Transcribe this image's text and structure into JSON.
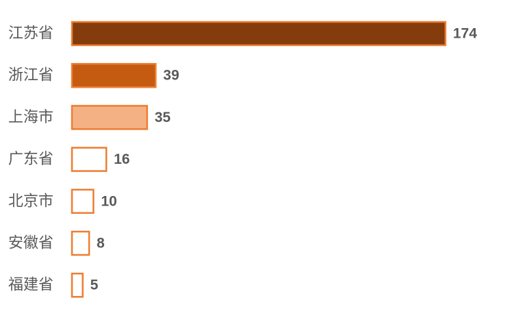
{
  "chart_data": {
    "type": "bar",
    "orientation": "horizontal",
    "categories": [
      "江苏省",
      "浙江省",
      "上海市",
      "广东省",
      "北京市",
      "安徽省",
      "福建省"
    ],
    "values": [
      174,
      39,
      35,
      16,
      10,
      8,
      5
    ],
    "data_labels": [
      "174",
      "39",
      "35",
      "16",
      "10",
      "8",
      "5"
    ],
    "title": "",
    "xlabel": "",
    "ylabel": "",
    "xlim": [
      0,
      174
    ],
    "grid": false,
    "legend": "none",
    "colors": {
      "fills": [
        "#843c0c",
        "#c55a11",
        "#f4b183",
        "#ffffff",
        "#ffffff",
        "#ffffff",
        "#ffffff"
      ],
      "stroke": "#ed7d31"
    }
  }
}
